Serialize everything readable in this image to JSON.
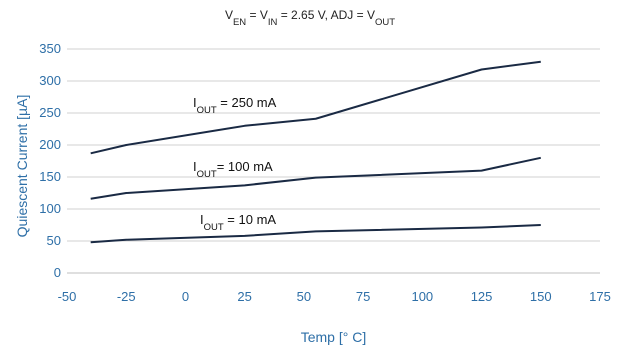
{
  "chart_data": {
    "type": "line",
    "title": {
      "parts": [
        {
          "t": "V",
          "sub": false
        },
        {
          "t": "EN",
          "sub": true
        },
        {
          "t": " = V",
          "sub": false
        },
        {
          "t": "IN",
          "sub": true
        },
        {
          "t": " = 2.65 V, ADJ = V",
          "sub": false
        },
        {
          "t": "OUT",
          "sub": true
        }
      ]
    },
    "xlabel": "Temp [° C]",
    "ylabel": "Quiescent Current [µA]",
    "xlim": [
      -50,
      175
    ],
    "ylim": [
      0,
      350
    ],
    "x_ticks": [
      "-50",
      "-25",
      "0",
      "25",
      "50",
      "75",
      "100",
      "125",
      "150",
      "175"
    ],
    "y_ticks": [
      "0",
      "50",
      "100",
      "150",
      "200",
      "250",
      "300",
      "350"
    ],
    "grid": true,
    "line_color": "#1a2a44",
    "grid_color": "#d2d2d2",
    "text_color": "#2e6fa7",
    "series": [
      {
        "label_parts": [
          {
            "t": "I",
            "sub": false
          },
          {
            "t": "OUT",
            "sub": true
          },
          {
            "t": " = 250 mA",
            "sub": false
          }
        ],
        "x": [
          -40,
          -25,
          25,
          55,
          125,
          150
        ],
        "y": [
          187,
          200,
          230,
          241,
          318,
          330
        ]
      },
      {
        "label_parts": [
          {
            "t": "I",
            "sub": false
          },
          {
            "t": "OUT",
            "sub": true
          },
          {
            "t": "= 100 mA",
            "sub": false
          }
        ],
        "x": [
          -40,
          -25,
          25,
          55,
          125,
          150
        ],
        "y": [
          116,
          125,
          137,
          149,
          160,
          180
        ]
      },
      {
        "label_parts": [
          {
            "t": "I",
            "sub": false
          },
          {
            "t": "OUT",
            "sub": true
          },
          {
            "t": " = 10 mA",
            "sub": false
          }
        ],
        "x": [
          -40,
          -25,
          25,
          55,
          125,
          150
        ],
        "y": [
          48,
          52,
          58,
          65,
          71,
          75
        ]
      }
    ]
  }
}
